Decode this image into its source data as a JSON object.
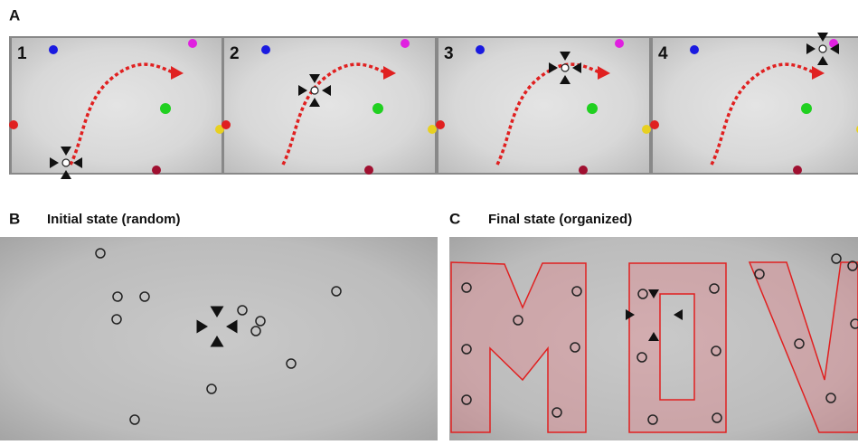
{
  "panel_a": {
    "label": "A",
    "frames": [
      "1",
      "2",
      "3",
      "4"
    ]
  },
  "panel_b": {
    "label": "B",
    "title": "Initial state (random)"
  },
  "panel_c": {
    "label": "C",
    "title": "Final state (organized)"
  }
}
